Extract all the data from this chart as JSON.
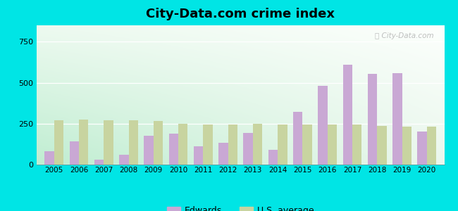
{
  "title": "City-Data.com crime index",
  "years": [
    2005,
    2006,
    2007,
    2008,
    2009,
    2010,
    2011,
    2012,
    2013,
    2014,
    2015,
    2016,
    2017,
    2018,
    2019,
    2020
  ],
  "edwards": [
    80,
    140,
    30,
    60,
    175,
    190,
    110,
    135,
    195,
    90,
    320,
    480,
    610,
    555,
    560,
    200
  ],
  "us_average": [
    270,
    275,
    270,
    270,
    265,
    250,
    245,
    245,
    250,
    245,
    245,
    245,
    245,
    235,
    230,
    230
  ],
  "edwards_color": "#c9a8d4",
  "us_avg_color": "#c8d4a0",
  "bg_outer": "#00e5e5",
  "ylim": [
    0,
    850
  ],
  "yticks": [
    0,
    250,
    500,
    750
  ],
  "bar_width": 0.38,
  "watermark": "City-Data.com",
  "legend_edwards": "Edwards",
  "legend_us": "U.S. average",
  "gradient_topleft": [
    0.85,
    0.95,
    0.88
  ],
  "gradient_topright": [
    0.97,
    0.99,
    0.97
  ],
  "gradient_bottomleft": [
    0.78,
    0.93,
    0.85
  ],
  "gradient_bottomright": [
    0.97,
    0.99,
    0.97
  ]
}
